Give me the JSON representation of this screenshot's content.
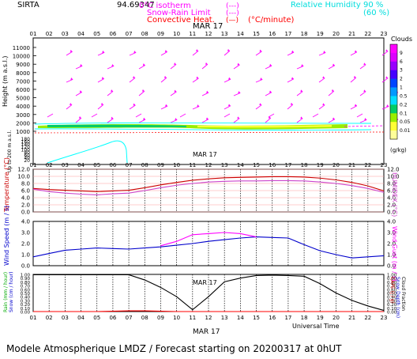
{
  "header": {
    "station": "SIRTA",
    "coords": "94.69347",
    "legend_items": [
      {
        "label": "0°C isotherm",
        "sample": "(---)",
        "color": "#ff00ff"
      },
      {
        "label": "Snow-Rain Limit",
        "sample": "(---)",
        "color": "#ff00ff"
      },
      {
        "label": "Convective Heat.",
        "sample": "(—)",
        "unit": "(°C/minute)",
        "color": "#ff0000"
      }
    ],
    "humidity_label": "Relative Humidity",
    "humidity_values": [
      "90 %",
      "(60 %)"
    ]
  },
  "hours": [
    "01",
    "02",
    "03",
    "04",
    "05",
    "06",
    "07",
    "08",
    "09",
    "10",
    "11",
    "12",
    "13",
    "14",
    "15",
    "16",
    "17",
    "18",
    "19",
    "20",
    "21",
    "22",
    "23"
  ],
  "date_label": "MAR 17",
  "footer": {
    "time_axis": "Universal Time",
    "caption": "Modele Atmospherique LMDZ / Forecast starting on 20200317 at 0hUT"
  },
  "colorbar": {
    "title": "Clouds",
    "ticks": [
      "9",
      "6",
      "3",
      "2",
      "1",
      "0.5",
      "0.2",
      "0.1",
      "0.05",
      "0.01"
    ],
    "unit": "(g/kg)",
    "colors": [
      "#ff00ff",
      "#dd00ff",
      "#9900ff",
      "#4400ff",
      "#0044ff",
      "#0099ff",
      "#00ddff",
      "#00cc66",
      "#99ee00",
      "#ffff33",
      "#ffff99"
    ]
  },
  "colors": {
    "grid_red": "#ff0000",
    "temperature": "#cc0000",
    "humidex": "#cc44cc",
    "wind_speed": "#0000cc",
    "wind_gust": "#ff00ff",
    "cloud_fraction": "#000000",
    "rain": "#ff0000",
    "arrows": "#ff00ff",
    "humidity": "#00ffff"
  },
  "chart_data": [
    {
      "type": "vector-field",
      "panel": "height",
      "ylabel": "Height  (m a.s.l.)",
      "ylabel2": "Up to 200 m a.s.l.",
      "upper_ticks": [
        "11000",
        "10000",
        "9000",
        "8000",
        "7000",
        "6000",
        "5000",
        "4000",
        "3000",
        "2000",
        "1000"
      ],
      "lower_ticks": [
        "180",
        "160",
        "140",
        "120",
        "100",
        "80",
        "60",
        "40",
        "20"
      ],
      "ylim_upper": [
        1000,
        11500
      ],
      "ylim_lower": [
        0,
        200
      ]
    },
    {
      "type": "line",
      "panel": "temperature",
      "ylabel": "Temperature (°C)",
      "ylabel2": "HUMIDEX (°C)",
      "yticks": [
        "12.0",
        "10.0",
        "8.0",
        "6.0",
        "4.0",
        "2.0",
        "0.0"
      ],
      "ylim": [
        0,
        12
      ],
      "x": [
        1,
        2,
        3,
        4,
        5,
        6,
        7,
        8,
        9,
        10,
        11,
        12,
        13,
        14,
        15,
        16,
        17,
        18,
        19,
        20,
        21,
        22,
        23
      ],
      "series": [
        {
          "name": "Temperature",
          "values": [
            6.6,
            6.3,
            6.1,
            5.9,
            5.7,
            5.9,
            6.1,
            6.8,
            7.6,
            8.3,
            8.9,
            9.3,
            9.6,
            9.7,
            9.8,
            9.9,
            9.9,
            9.8,
            9.5,
            9.0,
            8.3,
            7.3,
            5.9
          ]
        },
        {
          "name": "HUMIDEX",
          "values": [
            6.4,
            5.7,
            5.3,
            5.0,
            4.8,
            5.1,
            5.3,
            6.0,
            6.8,
            7.5,
            8.0,
            8.4,
            8.6,
            8.7,
            8.7,
            8.8,
            8.8,
            8.7,
            8.4,
            8.0,
            7.4,
            6.6,
            5.5
          ]
        }
      ]
    },
    {
      "type": "line",
      "panel": "wind",
      "ylabel": "Wind Speed (m / s)",
      "ylabel2": "Wind Gust (m / s)",
      "yticks": [
        "4.0",
        "3.0",
        "2.0",
        "1.0",
        "0.0"
      ],
      "ylim": [
        0,
        4
      ],
      "x": [
        1,
        2,
        3,
        4,
        5,
        6,
        7,
        8,
        9,
        10,
        11,
        12,
        13,
        14,
        15,
        16,
        17,
        18,
        19,
        20,
        21,
        22,
        23
      ],
      "series": [
        {
          "name": "Wind Speed",
          "values": [
            0.8,
            1.1,
            1.4,
            1.5,
            1.6,
            1.55,
            1.5,
            1.6,
            1.7,
            1.85,
            2.0,
            2.2,
            2.35,
            2.5,
            2.6,
            2.55,
            2.5,
            1.9,
            1.35,
            1.0,
            0.7,
            0.8,
            0.9
          ]
        },
        {
          "name": "Wind Gust",
          "values": [
            null,
            null,
            null,
            null,
            null,
            null,
            null,
            null,
            1.8,
            2.2,
            2.8,
            2.9,
            3.0,
            2.9,
            2.6,
            null,
            null,
            null,
            null,
            null,
            null,
            null,
            null
          ]
        }
      ]
    },
    {
      "type": "line",
      "panel": "rain",
      "ylabel": "Rain (mm / hour)",
      "ylabel_b": "Snow (cm / hour)",
      "ylabel2": "CAPE (J / g)",
      "ylabel2_b": "Snow Depth (cm)",
      "ylabel2_c": "Cloud Fraction",
      "yticks": [
        "1.00",
        "0.90",
        "0.80",
        "0.70",
        "0.60",
        "0.50",
        "0.40",
        "0.30",
        "0.20",
        "0.10",
        "0.00"
      ],
      "ylim": [
        0,
        1
      ],
      "x": [
        1,
        2,
        3,
        4,
        5,
        6,
        7,
        8,
        9,
        10,
        11,
        12,
        13,
        14,
        15,
        16,
        17,
        18,
        19,
        20,
        21,
        22,
        23
      ],
      "series": [
        {
          "name": "Cloud Fraction",
          "values": [
            0.99,
            0.99,
            0.99,
            0.99,
            0.99,
            0.99,
            0.99,
            0.85,
            0.65,
            0.4,
            0.05,
            0.4,
            0.8,
            0.9,
            0.97,
            0.98,
            0.97,
            0.95,
            0.75,
            0.5,
            0.3,
            0.15,
            0.03
          ]
        },
        {
          "name": "Rain",
          "values": [
            0,
            0,
            0,
            0,
            0,
            0.01,
            0.02,
            0.02,
            0.01,
            0,
            0,
            0,
            0,
            0,
            0,
            0,
            0,
            0,
            0,
            0,
            0,
            0,
            0
          ]
        }
      ]
    }
  ]
}
